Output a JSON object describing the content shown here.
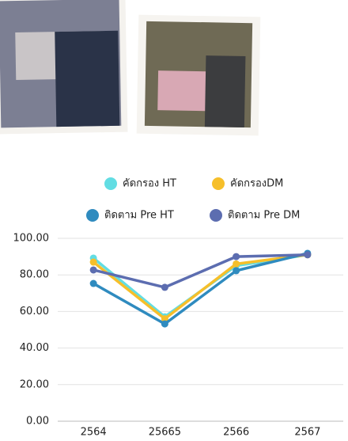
{
  "chart_data": {
    "type": "line",
    "categories": [
      "2564",
      "25665",
      "2566",
      "2567"
    ],
    "series": [
      {
        "name": "คัดกรอง HT",
        "color": "#62dde3",
        "values": [
          89.2,
          57.1,
          85.0,
          91.0
        ]
      },
      {
        "name": "คัดกรองDM",
        "color": "#f6bf2a",
        "values": [
          87.0,
          56.0,
          86.0,
          91.0
        ]
      },
      {
        "name": "ติดตาม Pre HT",
        "color": "#2f8bbf",
        "values": [
          75.3,
          53.2,
          82.3,
          91.8
        ]
      },
      {
        "name": "ติดตาม Pre DM",
        "color": "#5c6db0",
        "values": [
          82.7,
          73.2,
          90.0,
          91.0
        ]
      }
    ],
    "ylim": [
      0,
      100
    ],
    "yticks": [
      {
        "value": 0,
        "label": "0.00"
      },
      {
        "value": 20,
        "label": "20.00"
      },
      {
        "value": 40,
        "label": "40.00"
      },
      {
        "value": 60,
        "label": "60.00"
      },
      {
        "value": 80,
        "label": "80.00"
      },
      {
        "value": 100,
        "label": "100.00"
      }
    ],
    "grid": true
  }
}
